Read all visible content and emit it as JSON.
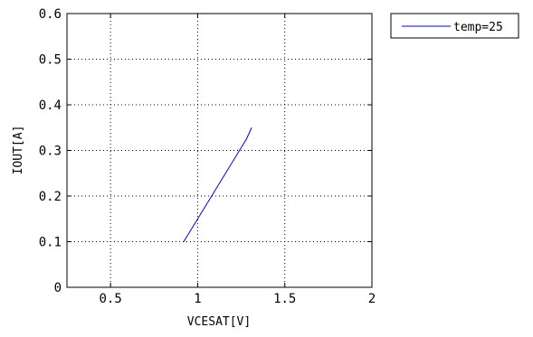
{
  "chart_data": {
    "type": "line",
    "xlabel": "VCESAT[V]",
    "ylabel": "IOUT[A]",
    "xlim": [
      0.25,
      2.0
    ],
    "ylim": [
      0,
      0.6
    ],
    "xticks": [
      0.5,
      1.0,
      1.5,
      2.0
    ],
    "xtick_labels": [
      "0.5",
      "1",
      "1.5",
      "2"
    ],
    "yticks": [
      0,
      0.1,
      0.2,
      0.3,
      0.4,
      0.5,
      0.6
    ],
    "ytick_labels": [
      "0",
      "0.1",
      "0.2",
      "0.3",
      "0.4",
      "0.5",
      "0.6"
    ],
    "grid": true,
    "legend_position": "outside-top-right",
    "series": [
      {
        "name": "temp=25",
        "color": "#0000ff",
        "x": [
          0.92,
          0.96,
          1.0,
          1.04,
          1.08,
          1.12,
          1.16,
          1.2,
          1.24,
          1.28,
          1.31
        ],
        "y": [
          0.1,
          0.125,
          0.15,
          0.175,
          0.2,
          0.225,
          0.25,
          0.275,
          0.3,
          0.325,
          0.35
        ]
      }
    ]
  }
}
